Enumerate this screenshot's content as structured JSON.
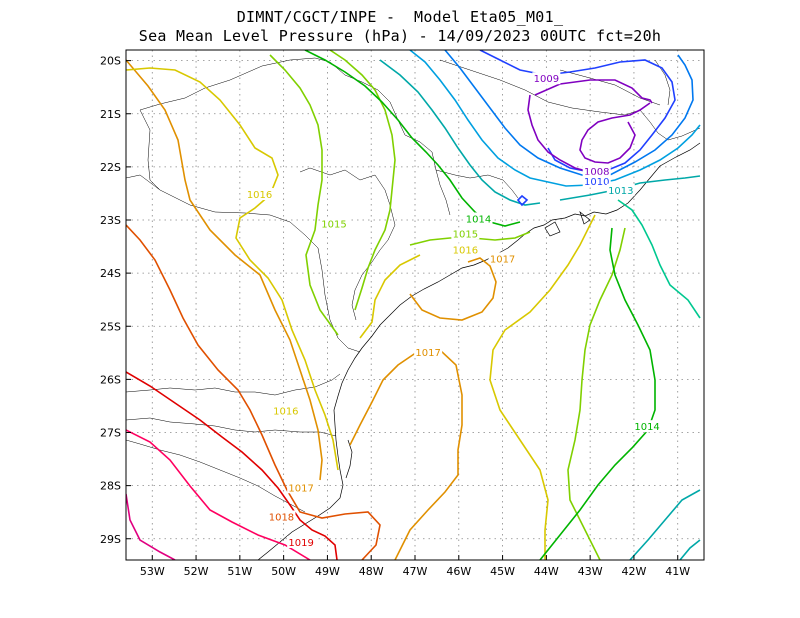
{
  "title": {
    "line1": "DIMNT/CGCT/INPE -  Model Eta05_M01_",
    "line2": "Sea Mean Level Pressure (hPa) - 14/09/2023 00UTC fct=20h"
  },
  "axes": {
    "lat_labels": [
      "20S",
      "21S",
      "22S",
      "23S",
      "24S",
      "25S",
      "26S",
      "27S",
      "28S",
      "29S"
    ],
    "lon_labels": [
      "53W",
      "52W",
      "51W",
      "50W",
      "49W",
      "48W",
      "47W",
      "46W",
      "45W",
      "44W",
      "43W",
      "42W",
      "41W"
    ],
    "lat_values": [
      -20,
      -21,
      -22,
      -23,
      -24,
      -25,
      -26,
      -27,
      -28,
      -29
    ],
    "lon_values": [
      -53,
      -52,
      -51,
      -50,
      -49,
      -48,
      -47,
      -46,
      -45,
      -44,
      -43,
      -42,
      -41
    ],
    "lon_range": [
      -53.6,
      -40.4
    ],
    "lat_range": [
      -29.4,
      -19.8
    ],
    "grid": "dotted"
  },
  "contour_labels": [
    {
      "text": "1009",
      "value": 1009,
      "lon": -44.0,
      "lat": -20.35,
      "color": "#8000c0"
    },
    {
      "text": "1008",
      "value": 1008,
      "lon": -42.85,
      "lat": -22.1,
      "color": "#8000c0"
    },
    {
      "text": "1010",
      "value": 1010,
      "lon": -42.85,
      "lat": -22.28,
      "color": "#2040ff"
    },
    {
      "text": "1013",
      "value": 1013,
      "lon": -42.3,
      "lat": -22.45,
      "color": "#00a8a8"
    },
    {
      "text": "1014",
      "value": 1014,
      "lon": -45.55,
      "lat": -22.99,
      "color": "#00b400"
    },
    {
      "text": "1015",
      "value": 1015,
      "lon": -48.85,
      "lat": -23.08,
      "color": "#80d000"
    },
    {
      "text": "1015",
      "value": 1015,
      "lon": -45.85,
      "lat": -23.27,
      "color": "#80d000"
    },
    {
      "text": "1016",
      "value": 1016,
      "lon": -50.55,
      "lat": -22.53,
      "color": "#d8c800"
    },
    {
      "text": "1016",
      "value": 1016,
      "lon": -45.85,
      "lat": -23.57,
      "color": "#d8c800"
    },
    {
      "text": "1016",
      "value": 1016,
      "lon": -49.95,
      "lat": -26.6,
      "color": "#d8c800"
    },
    {
      "text": "1017",
      "value": 1017,
      "lon": -45.0,
      "lat": -23.74,
      "color": "#e09000"
    },
    {
      "text": "1017",
      "value": 1017,
      "lon": -46.7,
      "lat": -25.5,
      "color": "#e09000"
    },
    {
      "text": "1017",
      "value": 1017,
      "lon": -49.6,
      "lat": -28.05,
      "color": "#e09000"
    },
    {
      "text": "1018",
      "value": 1018,
      "lon": -50.05,
      "lat": -28.6,
      "color": "#e05000"
    },
    {
      "text": "1019",
      "value": 1019,
      "lon": -49.6,
      "lat": -29.08,
      "color": "#e00000"
    },
    {
      "text": "1014",
      "value": 1014,
      "lon": -41.7,
      "lat": -26.9,
      "color": "#00b400"
    }
  ]
}
